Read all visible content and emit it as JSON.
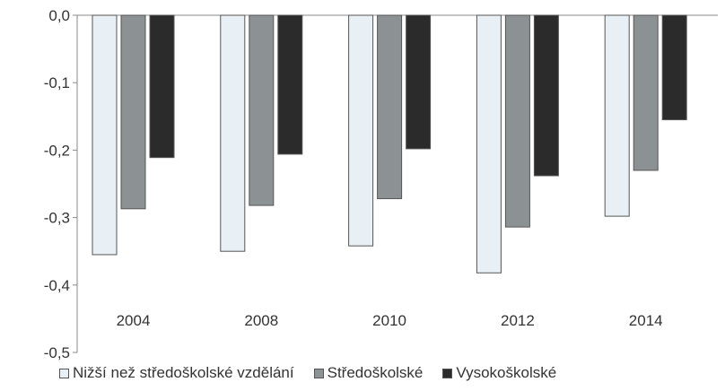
{
  "chart_data": {
    "type": "bar",
    "categories": [
      "2004",
      "2008",
      "2010",
      "2012",
      "2014"
    ],
    "series": [
      {
        "name": "Nižší než středoškolské vzdělání",
        "values": [
          -0.355,
          -0.35,
          -0.342,
          -0.382,
          -0.298
        ],
        "color": "#e8f0f5"
      },
      {
        "name": "Středoškolské",
        "values": [
          -0.287,
          -0.282,
          -0.272,
          -0.314,
          -0.23
        ],
        "color": "#8c9193"
      },
      {
        "name": "Vysokoškolské",
        "values": [
          -0.211,
          -0.206,
          -0.198,
          -0.238,
          -0.155
        ],
        "color": "#2b2b2b"
      }
    ],
    "ylim": [
      -0.5,
      0.0
    ],
    "yticks": [
      {
        "value": 0.0,
        "label": "0,0"
      },
      {
        "value": -0.1,
        "label": "-0,1"
      },
      {
        "value": -0.2,
        "label": "-0,2"
      },
      {
        "value": -0.3,
        "label": "-0,3"
      },
      {
        "value": -0.4,
        "label": "-0,4"
      },
      {
        "value": -0.5,
        "label": "-0,5"
      }
    ],
    "grid": false,
    "legend_position": "bottom"
  }
}
